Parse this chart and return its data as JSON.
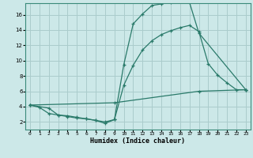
{
  "xlabel": "Humidex (Indice chaleur)",
  "ylabel": "",
  "bg_color": "#cce8e8",
  "grid_color": "#aacccc",
  "line_color": "#2a7a6a",
  "xlim": [
    -0.5,
    23.5
  ],
  "ylim": [
    1.0,
    17.5
  ],
  "xticks": [
    0,
    1,
    2,
    3,
    4,
    5,
    6,
    7,
    8,
    9,
    10,
    11,
    12,
    13,
    14,
    15,
    16,
    17,
    18,
    19,
    20,
    21,
    22,
    23
  ],
  "yticks": [
    2,
    4,
    6,
    8,
    10,
    12,
    14,
    16
  ],
  "line1_x": [
    0,
    1,
    2,
    3,
    4,
    5,
    6,
    7,
    8,
    9,
    10,
    11,
    12,
    13,
    14,
    15,
    16,
    17,
    18,
    23
  ],
  "line1_y": [
    4.2,
    3.9,
    3.1,
    2.9,
    2.8,
    2.6,
    2.4,
    2.2,
    1.8,
    2.3,
    9.5,
    14.8,
    16.1,
    17.2,
    17.4,
    17.6,
    17.7,
    17.6,
    13.6,
    6.2
  ],
  "line2_x": [
    0,
    2,
    3,
    4,
    5,
    6,
    7,
    8,
    9,
    10,
    11,
    12,
    13,
    14,
    15,
    16,
    17,
    18,
    19,
    20,
    21,
    22,
    23
  ],
  "line2_y": [
    4.2,
    3.8,
    2.9,
    2.7,
    2.5,
    2.4,
    2.2,
    2.0,
    2.3,
    6.8,
    9.4,
    11.4,
    12.6,
    13.4,
    13.9,
    14.3,
    14.6,
    13.8,
    9.6,
    8.1,
    7.1,
    6.2,
    6.2
  ],
  "line3_x": [
    0,
    9,
    18,
    23
  ],
  "line3_y": [
    4.2,
    4.5,
    6.0,
    6.2
  ]
}
